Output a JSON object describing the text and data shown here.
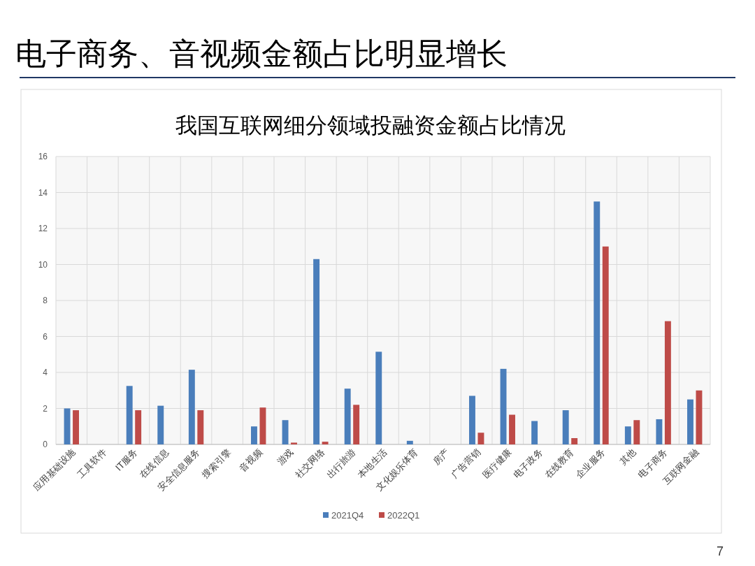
{
  "chart_data": {
    "type": "bar",
    "title": "电子商务、音视频金额占比明显增长",
    "subtitle": "我国互联网细分领域投融资金额占比情况",
    "categories": [
      "应用基础设施",
      "工具软件",
      "IT服务",
      "在线信息",
      "安全信息服务",
      "搜索引擎",
      "音视频",
      "游戏",
      "社交网络",
      "出行旅游",
      "本地生活",
      "文化娱乐体育",
      "房产",
      "广告营销",
      "医疗健康",
      "电子政务",
      "在线教育",
      "企业服务",
      "其他",
      "电子商务",
      "互联网金融"
    ],
    "series": [
      {
        "name": "2021Q4",
        "color": "#4a7ebb",
        "values": [
          2.0,
          0,
          3.25,
          2.15,
          4.15,
          0,
          1.0,
          1.35,
          10.3,
          3.1,
          5.15,
          0.2,
          0,
          2.7,
          4.2,
          1.3,
          1.9,
          13.5,
          1.0,
          1.4,
          2.5
        ]
      },
      {
        "name": "2022Q1",
        "color": "#be4b48",
        "values": [
          1.9,
          0,
          1.9,
          0,
          1.9,
          0,
          2.05,
          0.1,
          0.15,
          2.2,
          0,
          0,
          0,
          0.65,
          1.65,
          0,
          0.35,
          11.0,
          1.35,
          6.85,
          3.0
        ]
      }
    ],
    "ylim": [
      0,
      16
    ],
    "yticks": [
      0,
      2,
      4,
      6,
      8,
      10,
      12,
      14,
      16
    ],
    "grid": true,
    "legend": "bottom",
    "annotations": [
      "7"
    ]
  }
}
